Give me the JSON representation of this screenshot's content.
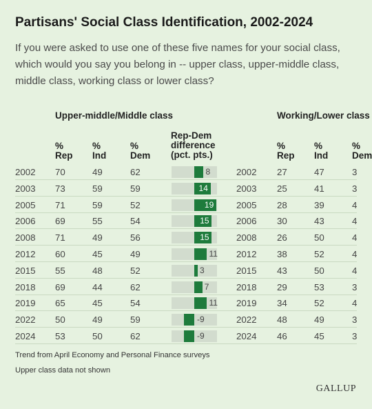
{
  "title": "Partisans' Social Class Identification, 2002-2024",
  "subtitle": "If you were asked to use one of these five names for your social class, which would you say you belong in -- upper class, upper-middle class, middle class, working class or lower class?",
  "group1_header": "Upper-middle/Middle class",
  "group2_header": "Working/Lower class",
  "col_rep": [
    "%",
    "Rep"
  ],
  "col_ind": [
    "%",
    "Ind"
  ],
  "col_dem": [
    "%",
    "Dem"
  ],
  "col_diff": [
    "Rep-Dem",
    "difference",
    "(pct. pts.)"
  ],
  "footnote1": "Trend from April Economy and Personal Finance surveys",
  "footnote2": "Upper class data not shown",
  "logo": "GALLUP",
  "colors": {
    "background": "#e6f2e0",
    "bar": "#1e7b3c",
    "bar_track": "#d2dcce"
  },
  "chart_data": {
    "type": "table",
    "title": "Partisans' Social Class Identification, 2002-2024",
    "years": [
      "2002",
      "2003",
      "2005",
      "2006",
      "2008",
      "2012",
      "2015",
      "2018",
      "2019",
      "2022",
      "2024"
    ],
    "upper_middle_middle": {
      "rep": [
        70,
        73,
        71,
        69,
        71,
        60,
        55,
        69,
        65,
        50,
        53
      ],
      "ind": [
        49,
        59,
        59,
        55,
        49,
        45,
        48,
        44,
        45,
        49,
        50
      ],
      "dem": [
        62,
        59,
        52,
        54,
        56,
        49,
        52,
        62,
        54,
        59,
        62
      ],
      "rep_dem_difference": [
        8,
        14,
        19,
        15,
        15,
        11,
        3,
        7,
        11,
        -9,
        -9
      ]
    },
    "working_lower": {
      "rep": [
        27,
        25,
        28,
        30,
        26,
        38,
        43,
        29,
        34,
        48,
        46
      ],
      "ind": [
        47,
        41,
        39,
        43,
        50,
        52,
        50,
        53,
        52,
        49,
        45
      ],
      "dem": [
        "3",
        "3",
        "4",
        "4",
        "4",
        "4",
        "4",
        "3",
        "4",
        "3",
        "3"
      ]
    }
  }
}
